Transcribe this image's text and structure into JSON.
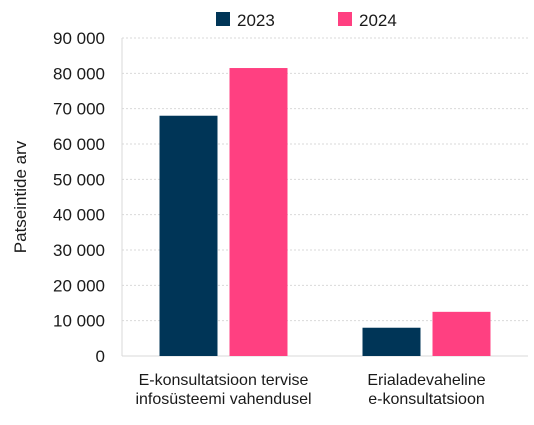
{
  "chart_data": {
    "type": "bar",
    "ylabel": "Patseintide arv",
    "xlabel": "",
    "categories": [
      [
        "E-konsultatsioon tervise",
        "infosüsteemi vahendusel"
      ],
      [
        "Erialadevaheline",
        "e-konsultatsioon"
      ]
    ],
    "series": [
      {
        "name": "2023",
        "color": "#003557",
        "values": [
          68000,
          8000
        ]
      },
      {
        "name": "2024",
        "color": "#ff4081",
        "values": [
          81500,
          12500
        ]
      }
    ],
    "ylim": [
      0,
      90000
    ],
    "yticks": [
      0,
      10000,
      20000,
      30000,
      40000,
      50000,
      60000,
      70000,
      80000,
      90000
    ],
    "ytick_labels": [
      "0",
      "10 000",
      "20 000",
      "30 000",
      "40 000",
      "50 000",
      "60 000",
      "70 000",
      "80 000",
      "90 000"
    ],
    "grid": true,
    "legend_position": "top-center"
  }
}
